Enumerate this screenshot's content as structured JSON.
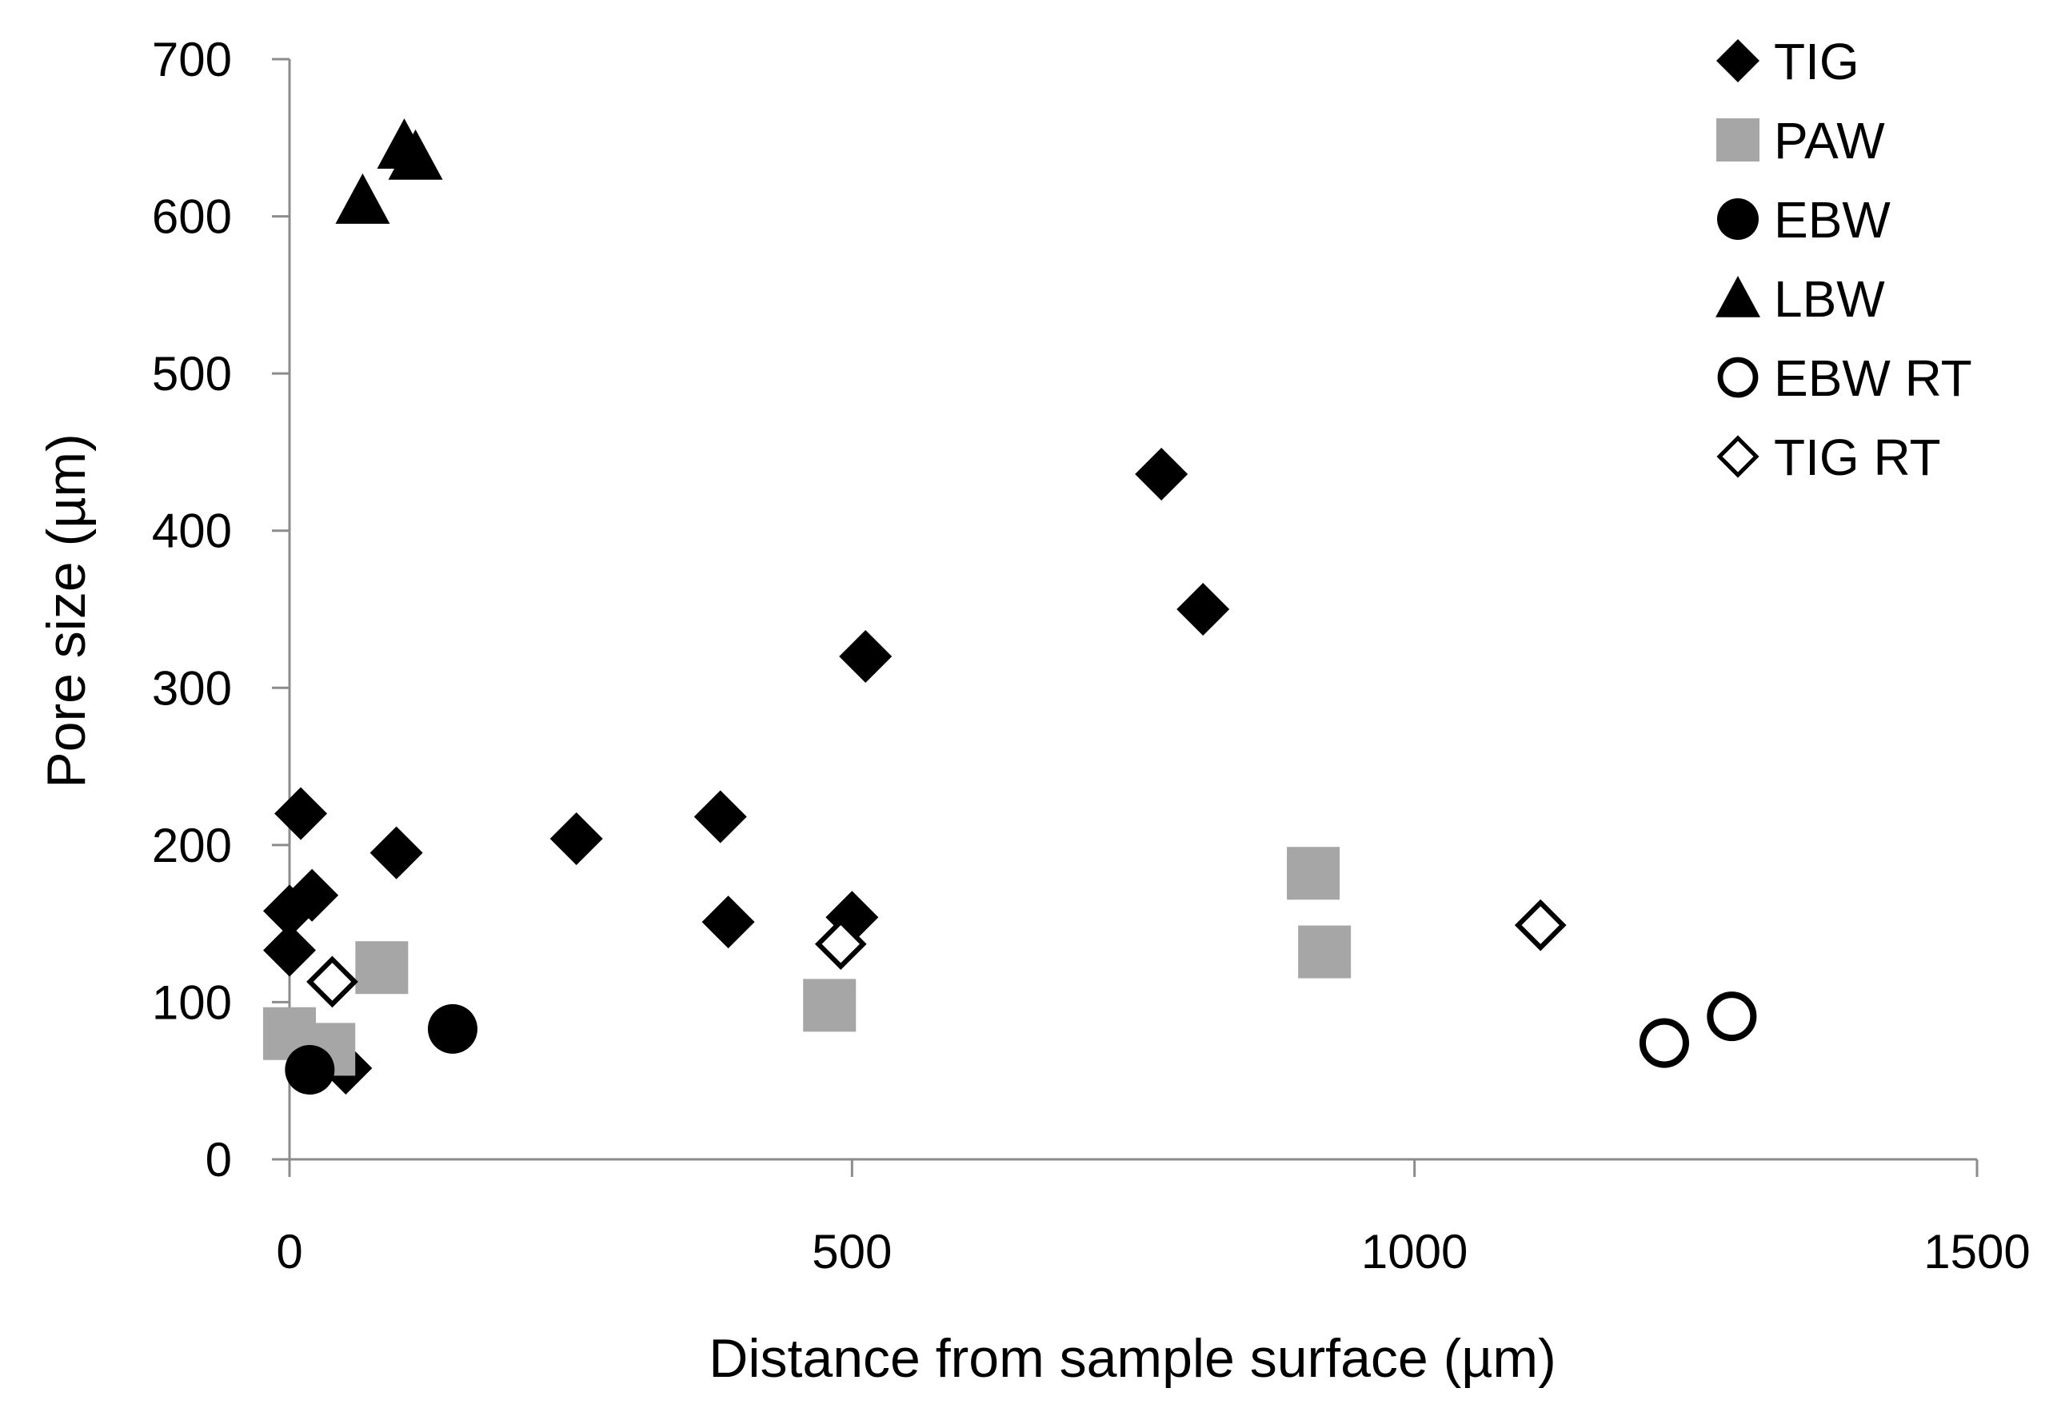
{
  "chart_data": {
    "type": "scatter",
    "title": "",
    "xlabel": "Distance from sample surface (µm)",
    "ylabel": "Pore size (µm)",
    "xlim": [
      0,
      1500
    ],
    "ylim": [
      0,
      700
    ],
    "xticks": [
      0,
      500,
      1000,
      1500
    ],
    "yticks": [
      0,
      100,
      200,
      300,
      400,
      500,
      600,
      700
    ],
    "legend_position": "top-right",
    "grid": false,
    "series": [
      {
        "name": "TIG",
        "marker": "diamond-filled",
        "color": "#000000",
        "points": [
          [
            10,
            220
          ],
          [
            0,
            158
          ],
          [
            20,
            168
          ],
          [
            0,
            133
          ],
          [
            95,
            195
          ],
          [
            255,
            204
          ],
          [
            383,
            218
          ],
          [
            390,
            151
          ],
          [
            500,
            154
          ],
          [
            512,
            320
          ],
          [
            775,
            436
          ],
          [
            812,
            350
          ],
          [
            50,
            58
          ]
        ]
      },
      {
        "name": "PAW",
        "marker": "square-filled",
        "color": "#a6a6a6",
        "points": [
          [
            0,
            80
          ],
          [
            35,
            70
          ],
          [
            82,
            122
          ],
          [
            480,
            98
          ],
          [
            910,
            182
          ],
          [
            920,
            132
          ]
        ]
      },
      {
        "name": "EBW",
        "marker": "circle-filled",
        "color": "#000000",
        "points": [
          [
            18,
            57
          ],
          [
            145,
            83
          ]
        ]
      },
      {
        "name": "LBW",
        "marker": "triangle-filled",
        "color": "#000000",
        "points": [
          [
            65,
            610
          ],
          [
            102,
            645
          ],
          [
            112,
            638
          ]
        ]
      },
      {
        "name": "EBW RT",
        "marker": "circle-open",
        "color": "#000000",
        "points": [
          [
            1222,
            74
          ],
          [
            1282,
            91
          ]
        ]
      },
      {
        "name": "TIG RT",
        "marker": "diamond-open",
        "color": "#000000",
        "points": [
          [
            38,
            113
          ],
          [
            490,
            137
          ],
          [
            1112,
            149
          ]
        ]
      }
    ]
  }
}
